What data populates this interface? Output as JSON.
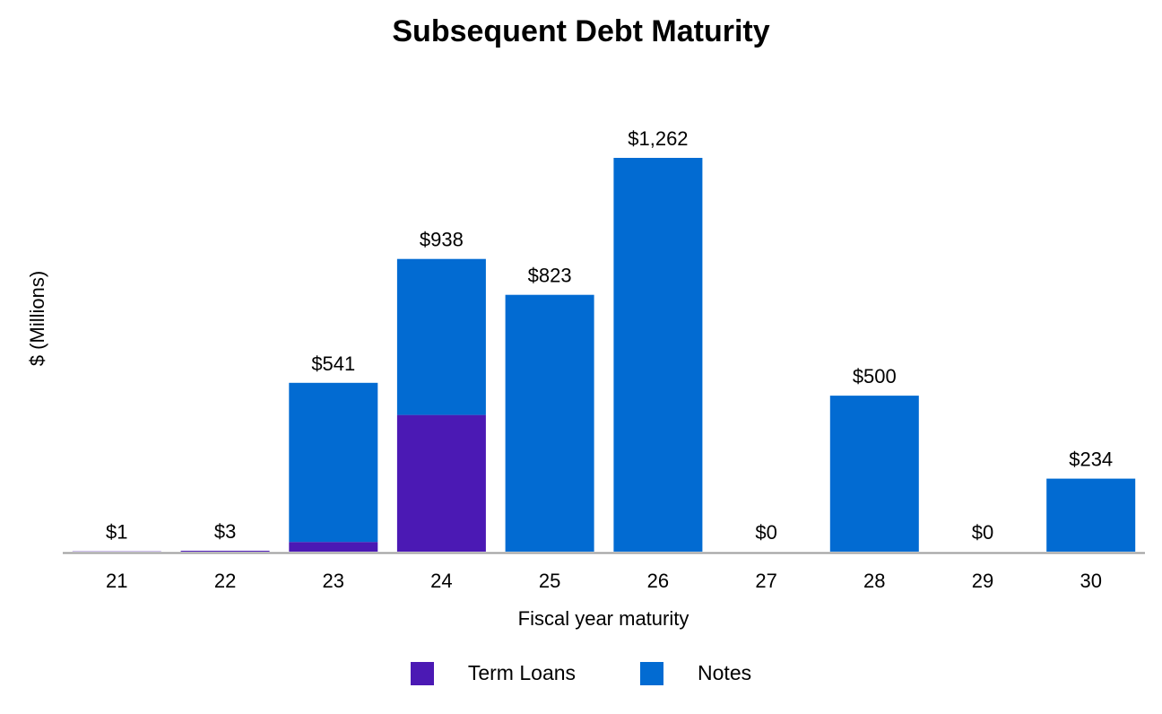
{
  "chart_data": {
    "type": "bar",
    "stacked": true,
    "title": "Subsequent Debt Maturity",
    "xlabel": "Fiscal year maturity",
    "ylabel": "$ (Millions)",
    "ylim": [
      0,
      1262
    ],
    "categories": [
      "21",
      "22",
      "23",
      "24",
      "25",
      "26",
      "27",
      "28",
      "29",
      "30"
    ],
    "series": [
      {
        "name": "Term Loans",
        "color": "#4b19b4",
        "values": [
          1,
          3,
          31,
          438,
          0,
          0,
          0,
          0,
          0,
          0
        ]
      },
      {
        "name": "Notes",
        "color": "#026bd2",
        "values": [
          0,
          0,
          510,
          500,
          823,
          1262,
          0,
          500,
          0,
          234
        ]
      }
    ],
    "totals_labels": [
      "$1",
      "$3",
      "$541",
      "$938",
      "$823",
      "$1,262",
      "$0",
      "$500",
      "$0",
      "$234"
    ],
    "legend_position": "bottom",
    "grid": false
  }
}
